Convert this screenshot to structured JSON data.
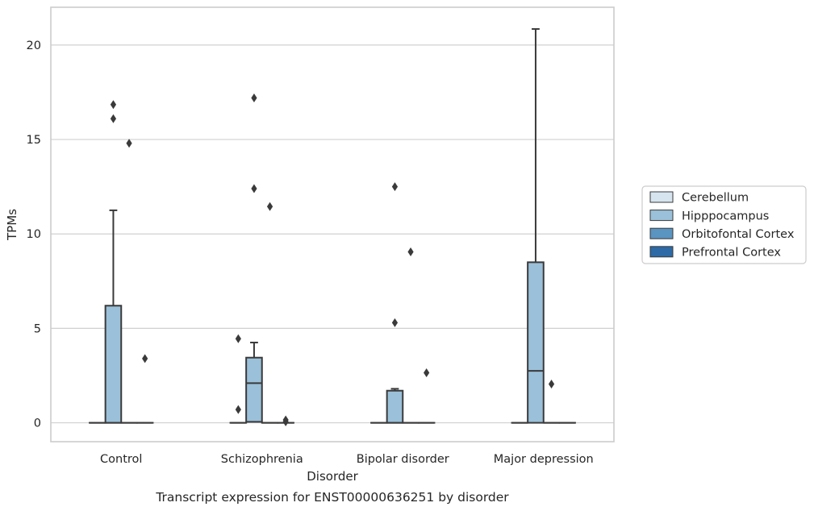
{
  "chart_data": {
    "type": "box",
    "xlabel": "Disorder",
    "ylabel": "TPMs",
    "caption": "Transcript expression for ENST00000636251 by disorder",
    "ylim": [
      -1,
      22
    ],
    "yticks": [
      0,
      5,
      10,
      15,
      20
    ],
    "grid": "horizontal",
    "legend_position": "right",
    "categories": [
      "Control",
      "Schizophrenia",
      "Bipolar disorder",
      "Major depression"
    ],
    "series": [
      {
        "name": "Cerebellum",
        "color": "#d6e4f0",
        "boxes": [
          {
            "min": 0,
            "q1": 0,
            "median": 0,
            "q3": 0,
            "max": 0,
            "fliers": []
          },
          {
            "min": 0,
            "q1": 0,
            "median": 0,
            "q3": 0,
            "max": 0,
            "fliers": [
              4.45,
              0.7
            ]
          },
          {
            "min": 0,
            "q1": 0,
            "median": 0,
            "q3": 0,
            "max": 0,
            "fliers": []
          },
          {
            "min": 0,
            "q1": 0,
            "median": 0,
            "q3": 0,
            "max": 0,
            "fliers": []
          }
        ]
      },
      {
        "name": "Hipppocampus",
        "color": "#9bc0d9",
        "boxes": [
          {
            "min": 0,
            "q1": 0,
            "median": 0,
            "q3": 6.2,
            "max": 11.25,
            "fliers": [
              16.85,
              16.1
            ]
          },
          {
            "min": 0.05,
            "q1": 0.05,
            "median": 2.1,
            "q3": 3.45,
            "max": 4.25,
            "fliers": [
              17.2,
              12.4
            ]
          },
          {
            "min": 0,
            "q1": 0,
            "median": 0,
            "q3": 1.7,
            "max": 1.8,
            "fliers": [
              12.5,
              5.3
            ]
          },
          {
            "min": 0,
            "q1": 0,
            "median": 2.75,
            "q3": 8.5,
            "max": 20.85,
            "fliers": []
          }
        ]
      },
      {
        "name": "Orbitofontal Cortex",
        "color": "#5a94c0",
        "boxes": [
          {
            "min": 0,
            "q1": 0,
            "median": 0,
            "q3": 0,
            "max": 0,
            "fliers": [
              14.8
            ]
          },
          {
            "min": 0,
            "q1": 0,
            "median": 0,
            "q3": 0,
            "max": 0,
            "fliers": [
              11.45
            ]
          },
          {
            "min": 0,
            "q1": 0,
            "median": 0,
            "q3": 0,
            "max": 0,
            "fliers": [
              9.05
            ]
          },
          {
            "min": 0,
            "q1": 0,
            "median": 0,
            "q3": 0,
            "max": 0,
            "fliers": [
              2.05
            ]
          }
        ]
      },
      {
        "name": "Prefrontal Cortex",
        "color": "#2d6aa6",
        "boxes": [
          {
            "min": 0,
            "q1": 0,
            "median": 0,
            "q3": 0,
            "max": 0,
            "fliers": [
              3.4
            ]
          },
          {
            "min": 0,
            "q1": 0,
            "median": 0,
            "q3": 0,
            "max": 0,
            "fliers": [
              0.15,
              0.05
            ]
          },
          {
            "min": 0,
            "q1": 0,
            "median": 0,
            "q3": 0,
            "max": 0,
            "fliers": [
              2.65
            ]
          },
          {
            "min": 0,
            "q1": 0,
            "median": 0,
            "q3": 0,
            "max": 0,
            "fliers": []
          }
        ]
      }
    ]
  }
}
